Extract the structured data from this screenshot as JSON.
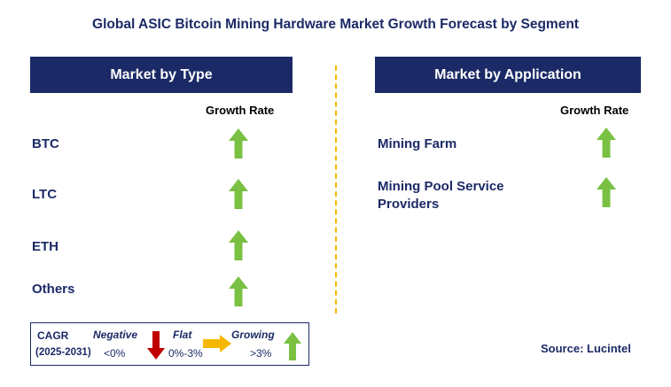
{
  "title": "Global ASIC Bitcoin Mining Hardware Market Growth Forecast by Segment",
  "left_panel": {
    "header": "Market by Type",
    "growth_label": "Growth Rate",
    "rows": [
      {
        "label": "BTC",
        "trend": "growing"
      },
      {
        "label": "LTC",
        "trend": "growing"
      },
      {
        "label": "ETH",
        "trend": "growing"
      },
      {
        "label": "Others",
        "trend": "growing"
      }
    ]
  },
  "right_panel": {
    "header": "Market by Application",
    "growth_label": "Growth Rate",
    "rows": [
      {
        "label": "Mining Farm",
        "trend": "growing"
      },
      {
        "label": "Mining Pool Service\nProviders",
        "trend": "growing"
      }
    ]
  },
  "legend": {
    "cagr_label": "CAGR",
    "period": "(2025-2031)",
    "negative_label": "Negative",
    "negative_range": "<0%",
    "flat_label": "Flat",
    "flat_range": "0%-3%",
    "growing_label": "Growing",
    "growing_range": ">3%"
  },
  "source": "Source: Lucintel",
  "colors": {
    "navy": "#1b2a66",
    "growing": "#7ac143",
    "flat": "#f5b800",
    "negative": "#c00000"
  },
  "icons": {
    "growing": "up-arrow-icon",
    "flat": "right-arrow-icon",
    "negative": "down-arrow-icon"
  }
}
